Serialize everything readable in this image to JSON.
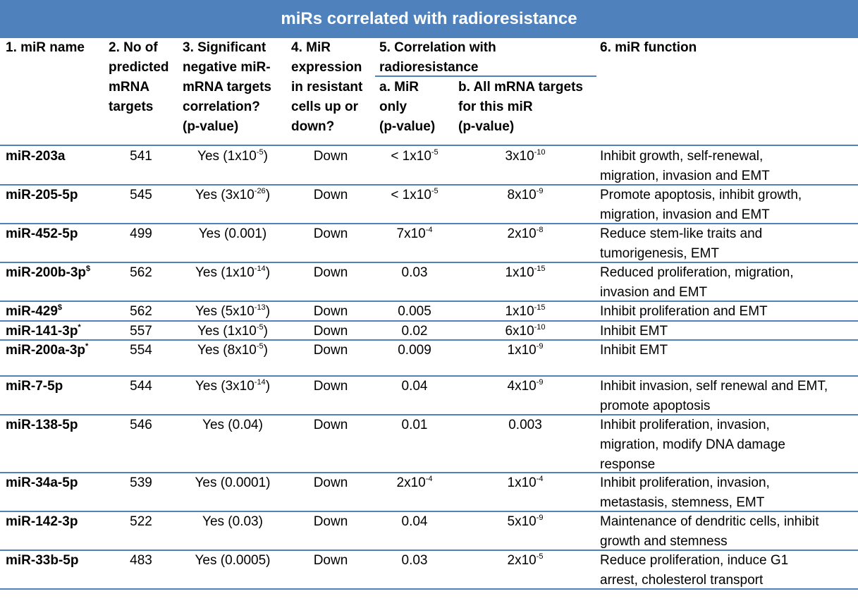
{
  "title": "miRs correlated with radioresistance",
  "headers": {
    "col1": [
      "1. miR name"
    ],
    "col2": [
      "2. No of",
      "predicted",
      "mRNA",
      "targets"
    ],
    "col3": [
      "3. Significant",
      "negative miR-",
      "mRNA targets",
      "correlation?",
      "(p-value)"
    ],
    "col4": [
      "4. MiR",
      "expression",
      "in resistant",
      "cells up or",
      "down?"
    ],
    "col5": [
      "5.  Correlation with",
      "radioresistance"
    ],
    "col5a": [
      "a. MiR",
      "only",
      "(p-value)"
    ],
    "col5b": [
      "b. All mRNA targets",
      "for this miR",
      "(p-value)"
    ],
    "col6": [
      "6. miR function"
    ]
  },
  "rows": [
    {
      "name": "miR-203a",
      "mark": "",
      "targets": "541",
      "corr_pre": "Yes (1x10",
      "corr_exp": "-5",
      "corr_post": ")",
      "dir": "Down",
      "a_pre": "< 1x10",
      "a_exp": "-5",
      "b_pre": "3x10",
      "b_exp": "-10",
      "func": [
        "Inhibit growth, self-renewal,",
        "migration, invasion and EMT"
      ]
    },
    {
      "name": "miR-205-5p",
      "mark": "",
      "targets": "545",
      "corr_pre": "Yes (3x10",
      "corr_exp": "-26",
      "corr_post": ")",
      "dir": "Down",
      "a_pre": "< 1x10",
      "a_exp": "-5",
      "b_pre": "8x10",
      "b_exp": "-9",
      "func": [
        "Promote apoptosis, inhibit growth,",
        "migration, invasion and EMT"
      ]
    },
    {
      "name": "miR-452-5p",
      "mark": "",
      "targets": "499",
      "corr_pre": "Yes (0.001)",
      "corr_exp": "",
      "corr_post": "",
      "dir": "Down",
      "a_pre": "7x10",
      "a_exp": "-4",
      "b_pre": "2x10",
      "b_exp": "-8",
      "func": [
        "Reduce stem-like traits and",
        "tumorigenesis, EMT"
      ]
    },
    {
      "name": "miR-200b-3p",
      "mark": "$",
      "targets": "562",
      "corr_pre": "Yes (1x10",
      "corr_exp": "-14",
      "corr_post": ")",
      "dir": "Down",
      "a_pre": "0.03",
      "a_exp": "",
      "b_pre": "1x10",
      "b_exp": "-15",
      "func": [
        "Reduced proliferation, migration,",
        "invasion and EMT"
      ]
    },
    {
      "name": "miR-429",
      "mark": "$",
      "targets": "562",
      "corr_pre": "Yes (5x10",
      "corr_exp": "-13",
      "corr_post": ")",
      "dir": "Down",
      "a_pre": "0.005",
      "a_exp": "",
      "b_pre": "1x10",
      "b_exp": "-15",
      "func": [
        "Inhibit proliferation and EMT"
      ]
    },
    {
      "name": "miR-141-3p",
      "mark": "*",
      "targets": "557",
      "corr_pre": "Yes (1x10",
      "corr_exp": "-5",
      "corr_post": ")",
      "dir": "Down",
      "a_pre": "0.02",
      "a_exp": "",
      "b_pre": "6x10",
      "b_exp": "-10",
      "func": [
        "Inhibit EMT"
      ]
    },
    {
      "name": "miR-200a-3p",
      "mark": "*",
      "targets": "554",
      "corr_pre": "Yes (8x10",
      "corr_exp": "-5",
      "corr_post": ")",
      "dir": "Down",
      "a_pre": "0.009",
      "a_exp": "",
      "b_pre": "1x10",
      "b_exp": "-9",
      "func": [
        "Inhibit EMT"
      ]
    },
    {
      "name": "miR-7-5p",
      "mark": "",
      "targets": "544",
      "corr_pre": "Yes (3x10",
      "corr_exp": "-14",
      "corr_post": ")",
      "dir": "Down",
      "a_pre": "0.04",
      "a_exp": "",
      "b_pre": "4x10",
      "b_exp": "-9",
      "func": [
        "Inhibit invasion, self renewal and EMT,",
        "promote apoptosis"
      ]
    },
    {
      "name": "miR-138-5p",
      "mark": "",
      "targets": "546",
      "corr_pre": "Yes (0.04)",
      "corr_exp": "",
      "corr_post": "",
      "dir": "Down",
      "a_pre": "0.01",
      "a_exp": "",
      "b_pre": "0.003",
      "b_exp": "",
      "func": [
        "Inhibit proliferation, invasion,",
        "migration, modify DNA damage",
        "response"
      ]
    },
    {
      "name": "miR-34a-5p",
      "mark": "",
      "targets": "539",
      "corr_pre": "Yes (0.0001)",
      "corr_exp": "",
      "corr_post": "",
      "dir": "Down",
      "a_pre": "2x10",
      "a_exp": "-4",
      "b_pre": "1x10",
      "b_exp": "-4",
      "func": [
        "Inhibit proliferation, invasion,",
        "metastasis, stemness, EMT"
      ]
    },
    {
      "name": "miR-142-3p",
      "mark": "",
      "targets": "522",
      "corr_pre": "Yes (0.03)",
      "corr_exp": "",
      "corr_post": "",
      "dir": "Down",
      "a_pre": "0.04",
      "a_exp": "",
      "b_pre": "5x10",
      "b_exp": "-9",
      "func": [
        "Maintenance of dendritic cells, inhibit",
        "growth and stemness"
      ]
    },
    {
      "name": "miR-33b-5p",
      "mark": "",
      "targets": "483",
      "corr_pre": "Yes (0.0005)",
      "corr_exp": "",
      "corr_post": "",
      "dir": "Down",
      "a_pre": "0.03",
      "a_exp": "",
      "b_pre": "2x10",
      "b_exp": "-5",
      "func": [
        "Reduce proliferation, induce G1",
        "arrest, cholesterol transport"
      ]
    }
  ]
}
